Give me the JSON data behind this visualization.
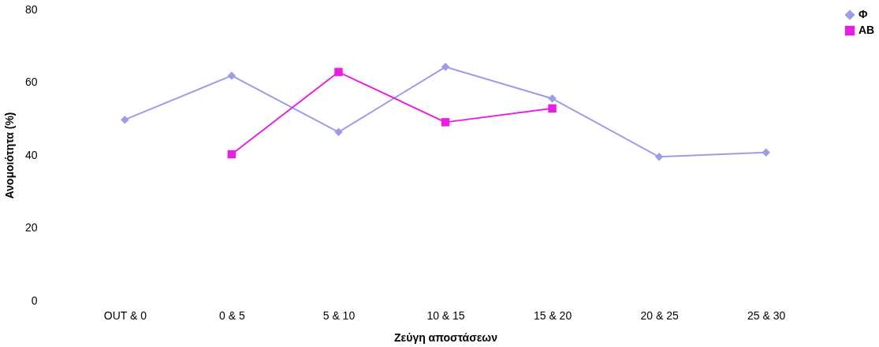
{
  "chart_data": {
    "type": "line",
    "xlabel": "Ζεύγη αποστάσεων",
    "ylabel": "Ανομοιότητα (%)",
    "categories": [
      "OUT & 0",
      "0 & 5",
      "5 & 10",
      "10 & 15",
      "15 & 20",
      "20 & 25",
      "25 & 30"
    ],
    "series": [
      {
        "name": "Φ",
        "color": "#9c9ce8",
        "marker": "diamond",
        "values": [
          49.7,
          61.8,
          46.3,
          64.2,
          55.5,
          39.5,
          40.7
        ]
      },
      {
        "name": "AB",
        "color": "#e81ee0",
        "marker": "square",
        "values": [
          null,
          40.2,
          62.8,
          49.0,
          52.8,
          null,
          null
        ]
      }
    ],
    "ylim": [
      0,
      80
    ],
    "yticks": [
      0,
      20,
      40,
      60,
      80
    ],
    "grid": false,
    "legend": "right",
    "line_style": "solid"
  }
}
